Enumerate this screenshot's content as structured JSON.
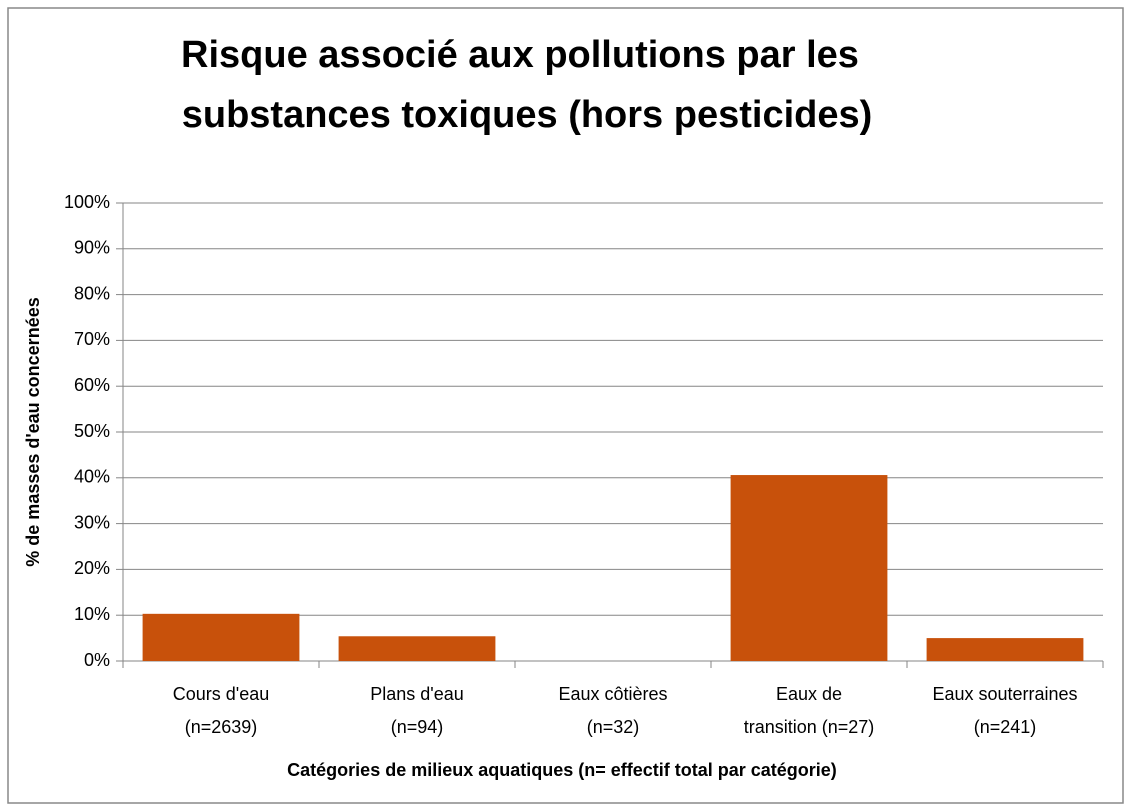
{
  "chart_data": {
    "type": "bar",
    "title": [
      "Risque associé aux pollutions par les",
      "substances toxiques (hors pesticides)"
    ],
    "y_label": "% de masses d'eau concernées",
    "x_label": "Catégories de milieux aquatiques  (n= effectif total par catégorie)",
    "categories": [
      [
        "Cours d'eau",
        "(n=2639)"
      ],
      [
        "Plans d'eau",
        "(n=94)"
      ],
      [
        "Eaux côtières",
        "(n=32)"
      ],
      [
        "Eaux de",
        "transition (n=27)"
      ],
      [
        "Eaux souterraines",
        "(n=241)"
      ]
    ],
    "values": [
      10.3,
      5.4,
      0,
      40.6,
      5.0
    ],
    "color": "#c8510b",
    "ylim": [
      0,
      100
    ],
    "yticks": [
      {
        "value": 0,
        "label": "0%"
      },
      {
        "value": 10,
        "label": "10%"
      },
      {
        "value": 20,
        "label": "20%"
      },
      {
        "value": 30,
        "label": "30%"
      },
      {
        "value": 40,
        "label": "40%"
      },
      {
        "value": 50,
        "label": "50%"
      },
      {
        "value": 60,
        "label": "60%"
      },
      {
        "value": 70,
        "label": "70%"
      },
      {
        "value": 80,
        "label": "80%"
      },
      {
        "value": 90,
        "label": "90%"
      },
      {
        "value": 100,
        "label": "100%"
      }
    ],
    "grid": true
  }
}
